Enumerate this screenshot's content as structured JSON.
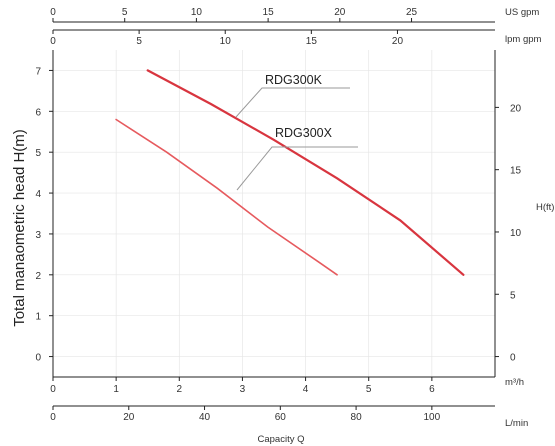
{
  "chart_data": {
    "type": "line",
    "title": "",
    "grid": true,
    "xlabel": "Capacity Q",
    "ylabel": "Total manaometric head H(m)",
    "y2label": "H(ft)",
    "xlim": [
      0,
      7
    ],
    "ylim": [
      -0.5,
      7.5
    ],
    "x_unit": "m³/h",
    "x_ticks": [
      "0",
      "1",
      "2",
      "3",
      "4",
      "5",
      "6"
    ],
    "y_ticks": [
      "0",
      "1",
      "2",
      "3",
      "4",
      "5",
      "6",
      "7"
    ],
    "axes": {
      "us_gpm": {
        "unit_label": "US  gpm",
        "ticks": [
          "0",
          "5",
          "10",
          "15",
          "20",
          "25"
        ],
        "values": [
          0,
          5,
          10,
          15,
          20,
          25
        ],
        "factor": 4.4029
      },
      "lpm_gpm": {
        "unit_label": "lpm  gpm",
        "ticks": [
          "0",
          "5",
          "10",
          "15",
          "20"
        ],
        "values": [
          0,
          5,
          10,
          15,
          20
        ],
        "factor": 3.6662
      },
      "lmin": {
        "unit_label": "L/min",
        "ticks": [
          "0",
          "20",
          "40",
          "60",
          "80",
          "100"
        ],
        "values": [
          0,
          20,
          40,
          60,
          80,
          100
        ],
        "factor": 16.6667
      },
      "hft": {
        "ticks": [
          "0",
          "5",
          "10",
          "15",
          "20"
        ],
        "values": [
          0,
          5,
          10,
          15,
          20
        ],
        "factor": 3.2808
      }
    },
    "series": [
      {
        "name": "RDG300K",
        "color": "#d8353f",
        "x": [
          1.5,
          2.5,
          3.5,
          4.5,
          5.5,
          6.5
        ],
        "y": [
          7.0,
          6.18,
          5.3,
          4.36,
          3.33,
          2.0
        ]
      },
      {
        "name": "RDG300X",
        "color": "#e65a5e",
        "x": [
          1.0,
          1.8,
          2.6,
          3.4,
          4.2,
          4.5
        ],
        "y": [
          5.8,
          5.0,
          4.12,
          3.17,
          2.32,
          2.0
        ]
      }
    ]
  }
}
